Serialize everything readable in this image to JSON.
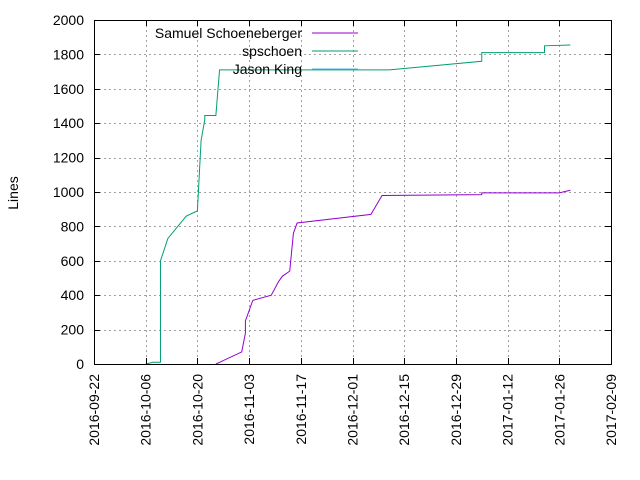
{
  "chart_data": {
    "type": "line",
    "ylabel": "Lines",
    "ylim": [
      0,
      2000
    ],
    "yticks": [
      0,
      200,
      400,
      600,
      800,
      1000,
      1200,
      1400,
      1600,
      1800,
      2000
    ],
    "xlim": [
      "2016-09-22",
      "2017-02-09"
    ],
    "xticks": [
      "2016-09-22",
      "2016-10-06",
      "2016-10-20",
      "2016-11-03",
      "2016-11-17",
      "2016-12-01",
      "2016-12-15",
      "2016-12-29",
      "2017-01-12",
      "2017-01-26",
      "2017-02-09"
    ],
    "grid": true,
    "legend_position": "top-right",
    "series": [
      {
        "name": "Samuel Schoeneberger",
        "color": "#9400d3",
        "points": [
          [
            "2016-10-25",
            0
          ],
          [
            "2016-10-26",
            10
          ],
          [
            "2016-11-01",
            70
          ],
          [
            "2016-11-02",
            180
          ],
          [
            "2016-11-02",
            250
          ],
          [
            "2016-11-04",
            370
          ],
          [
            "2016-11-09",
            400
          ],
          [
            "2016-11-11",
            480
          ],
          [
            "2016-11-12",
            510
          ],
          [
            "2016-11-14",
            540
          ],
          [
            "2016-11-15",
            760
          ],
          [
            "2016-11-16",
            820
          ],
          [
            "2016-12-06",
            870
          ],
          [
            "2016-12-09",
            980
          ],
          [
            "2017-01-05",
            985
          ],
          [
            "2017-01-05",
            995
          ],
          [
            "2017-01-26",
            995
          ],
          [
            "2017-01-29",
            1010
          ]
        ]
      },
      {
        "name": "spschoen",
        "color": "#009e73",
        "points": [
          [
            "2016-10-06",
            0
          ],
          [
            "2016-10-08",
            10
          ],
          [
            "2016-10-10",
            10
          ],
          [
            "2016-10-10",
            600
          ],
          [
            "2016-10-12",
            730
          ],
          [
            "2016-10-17",
            860
          ],
          [
            "2016-10-19",
            880
          ],
          [
            "2016-10-20",
            890
          ],
          [
            "2016-10-21",
            1300
          ],
          [
            "2016-10-22",
            1420
          ],
          [
            "2016-10-22",
            1445
          ],
          [
            "2016-10-25",
            1445
          ],
          [
            "2016-10-26",
            1710
          ],
          [
            "2016-12-11",
            1710
          ],
          [
            "2017-01-05",
            1760
          ],
          [
            "2017-01-05",
            1810
          ],
          [
            "2017-01-22",
            1810
          ],
          [
            "2017-01-22",
            1850
          ],
          [
            "2017-01-29",
            1855
          ]
        ]
      },
      {
        "name": "Jason King",
        "color": "#56b4e9",
        "points": []
      }
    ]
  }
}
